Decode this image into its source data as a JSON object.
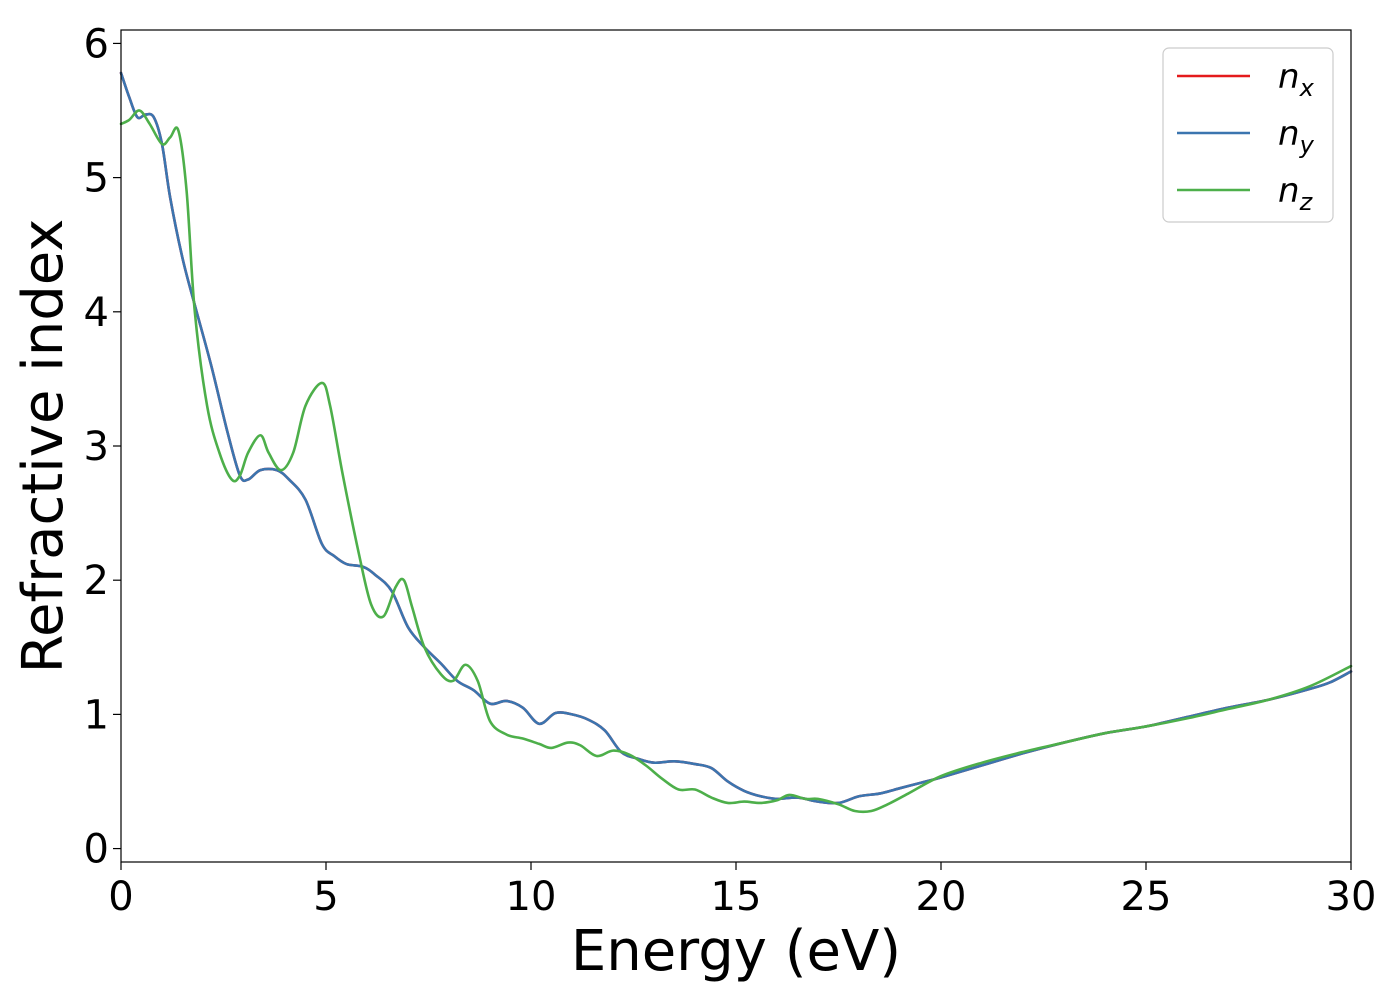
{
  "chart_data": {
    "type": "line",
    "title": "",
    "xlabel": "Energy (eV)",
    "ylabel": "Refractive index",
    "xlim": [
      0,
      30
    ],
    "ylim": [
      -0.1,
      6.1
    ],
    "xticks": [
      0,
      5,
      10,
      15,
      20,
      25,
      30
    ],
    "yticks": [
      0,
      1,
      2,
      3,
      4,
      5,
      6
    ],
    "grid": false,
    "legend_position": "top-right",
    "series": [
      {
        "name": "n",
        "subscript": "x",
        "color": "#e41a1c",
        "x": [
          0,
          0.2,
          0.4,
          0.6,
          0.8,
          1.0,
          1.2,
          1.5,
          1.8,
          2.2,
          2.6,
          2.9,
          3.1,
          3.4,
          3.8,
          4.1,
          4.5,
          4.9,
          5.2,
          5.5,
          5.9,
          6.2,
          6.6,
          7.0,
          7.4,
          7.8,
          8.2,
          8.6,
          9.0,
          9.4,
          9.8,
          10.2,
          10.6,
          11.0,
          11.4,
          11.8,
          12.2,
          12.6,
          13.0,
          13.5,
          14.0,
          14.4,
          14.8,
          15.2,
          15.6,
          16.0,
          16.5,
          17.0,
          17.5,
          18.0,
          18.5,
          19.0,
          19.5,
          20.0,
          21.0,
          22.0,
          23.0,
          24.0,
          25.0,
          26.0,
          27.0,
          28.0,
          29.0,
          29.5,
          30.0
        ],
        "y": [
          5.78,
          5.6,
          5.45,
          5.47,
          5.45,
          5.25,
          4.85,
          4.4,
          4.05,
          3.6,
          3.1,
          2.78,
          2.75,
          2.82,
          2.82,
          2.75,
          2.6,
          2.27,
          2.18,
          2.12,
          2.1,
          2.04,
          1.92,
          1.65,
          1.5,
          1.38,
          1.25,
          1.18,
          1.08,
          1.1,
          1.05,
          0.93,
          1.01,
          1.0,
          0.96,
          0.88,
          0.72,
          0.67,
          0.64,
          0.65,
          0.63,
          0.6,
          0.5,
          0.43,
          0.39,
          0.37,
          0.38,
          0.35,
          0.34,
          0.39,
          0.41,
          0.45,
          0.49,
          0.53,
          0.62,
          0.71,
          0.79,
          0.86,
          0.91,
          0.98,
          1.05,
          1.11,
          1.19,
          1.24,
          1.32
        ]
      },
      {
        "name": "n",
        "subscript": "y",
        "color": "#3b75af",
        "x": [
          0,
          0.2,
          0.4,
          0.6,
          0.8,
          1.0,
          1.2,
          1.5,
          1.8,
          2.2,
          2.6,
          2.9,
          3.1,
          3.4,
          3.8,
          4.1,
          4.5,
          4.9,
          5.2,
          5.5,
          5.9,
          6.2,
          6.6,
          7.0,
          7.4,
          7.8,
          8.2,
          8.6,
          9.0,
          9.4,
          9.8,
          10.2,
          10.6,
          11.0,
          11.4,
          11.8,
          12.2,
          12.6,
          13.0,
          13.5,
          14.0,
          14.4,
          14.8,
          15.2,
          15.6,
          16.0,
          16.5,
          17.0,
          17.5,
          18.0,
          18.5,
          19.0,
          19.5,
          20.0,
          21.0,
          22.0,
          23.0,
          24.0,
          25.0,
          26.0,
          27.0,
          28.0,
          29.0,
          29.5,
          30.0
        ],
        "y": [
          5.78,
          5.6,
          5.45,
          5.47,
          5.45,
          5.25,
          4.85,
          4.4,
          4.05,
          3.6,
          3.1,
          2.78,
          2.75,
          2.82,
          2.82,
          2.75,
          2.6,
          2.27,
          2.18,
          2.12,
          2.1,
          2.04,
          1.92,
          1.65,
          1.5,
          1.38,
          1.25,
          1.18,
          1.08,
          1.1,
          1.05,
          0.93,
          1.01,
          1.0,
          0.96,
          0.88,
          0.72,
          0.67,
          0.64,
          0.65,
          0.63,
          0.6,
          0.5,
          0.43,
          0.39,
          0.37,
          0.38,
          0.35,
          0.34,
          0.39,
          0.41,
          0.45,
          0.49,
          0.53,
          0.62,
          0.71,
          0.79,
          0.86,
          0.91,
          0.98,
          1.05,
          1.11,
          1.19,
          1.24,
          1.32
        ]
      },
      {
        "name": "n",
        "subscript": "z",
        "color": "#4daf4a",
        "x": [
          0,
          0.2,
          0.45,
          0.7,
          1.0,
          1.2,
          1.4,
          1.6,
          1.8,
          2.1,
          2.4,
          2.7,
          2.9,
          3.1,
          3.4,
          3.6,
          3.9,
          4.2,
          4.5,
          4.9,
          5.1,
          5.4,
          5.8,
          6.1,
          6.4,
          6.7,
          6.9,
          7.1,
          7.4,
          7.8,
          8.1,
          8.4,
          8.7,
          9.0,
          9.4,
          9.8,
          10.2,
          10.5,
          10.9,
          11.2,
          11.6,
          12.0,
          12.4,
          12.8,
          13.2,
          13.6,
          14.0,
          14.4,
          14.8,
          15.2,
          15.6,
          16.0,
          16.3,
          16.7,
          17.0,
          17.5,
          17.9,
          18.3,
          18.7,
          19.2,
          20.0,
          21.0,
          22.0,
          23.0,
          24.0,
          25.0,
          26.0,
          27.0,
          28.0,
          29.0,
          30.0
        ],
        "y": [
          5.4,
          5.43,
          5.5,
          5.4,
          5.25,
          5.3,
          5.35,
          4.9,
          4.0,
          3.3,
          2.95,
          2.75,
          2.78,
          2.95,
          3.08,
          2.95,
          2.82,
          2.95,
          3.3,
          3.47,
          3.3,
          2.8,
          2.2,
          1.82,
          1.73,
          1.95,
          2.0,
          1.8,
          1.5,
          1.3,
          1.25,
          1.37,
          1.25,
          0.95,
          0.85,
          0.82,
          0.78,
          0.75,
          0.79,
          0.77,
          0.69,
          0.73,
          0.7,
          0.62,
          0.52,
          0.44,
          0.44,
          0.38,
          0.34,
          0.35,
          0.34,
          0.36,
          0.4,
          0.37,
          0.37,
          0.33,
          0.28,
          0.28,
          0.33,
          0.41,
          0.54,
          0.64,
          0.72,
          0.79,
          0.86,
          0.91,
          0.97,
          1.04,
          1.11,
          1.21,
          1.36
        ]
      }
    ]
  }
}
